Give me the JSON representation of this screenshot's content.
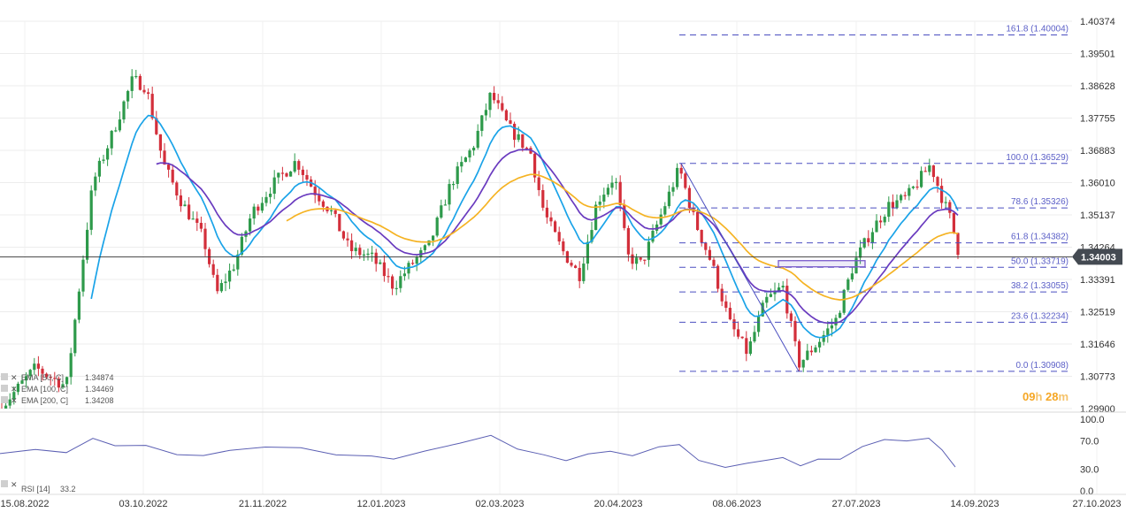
{
  "chart_data": {
    "type": "candlestick",
    "y_axis": {
      "range": [
        1.299,
        1.40374
      ],
      "ticks": [
        "1.40374",
        "1.39501",
        "1.38628",
        "1.37755",
        "1.36883",
        "1.36010",
        "1.35137",
        "1.34264",
        "1.33391",
        "1.32519",
        "1.31646",
        "1.30773",
        "1.29900"
      ]
    },
    "x_axis": {
      "ticks": [
        "15.08.2022",
        "03.10.2022",
        "21.11.2022",
        "12.01.2023",
        "02.03.2023",
        "20.04.2023",
        "08.06.2023",
        "27.07.2023",
        "14.09.2023",
        "27.10.2023"
      ]
    },
    "current_price": "1.34003",
    "current_price_value": 1.34003,
    "timer": {
      "hours": "09",
      "h": "h",
      "minutes": "28",
      "m": "m"
    },
    "fibonacci": {
      "levels": [
        {
          "label": "161.8 (1.40004)",
          "value": 1.40004
        },
        {
          "label": "100.0 (1.36529)",
          "value": 1.36529
        },
        {
          "label": "78.6 (1.35326)",
          "value": 1.35326
        },
        {
          "label": "61.8 (1.34382)",
          "value": 1.34382
        },
        {
          "label": "50.0 (1.33719)",
          "value": 1.33719
        },
        {
          "label": "38.2 (1.33055)",
          "value": 1.33055
        },
        {
          "label": "23.6 (1.32234)",
          "value": 1.32234
        },
        {
          "label": "0.0 (1.30908)",
          "value": 1.30908
        }
      ]
    },
    "indicators": [
      {
        "name": "EMA [50, C]",
        "value": "1.34874",
        "color": "#1aa3e8"
      },
      {
        "name": "EMA [100, C]",
        "value": "1.34469",
        "color": "#6a3bbf"
      },
      {
        "name": "EMA [200, C]",
        "value": "1.34208",
        "color": "#f5b323"
      }
    ],
    "rsi": {
      "name": "RSI [14]",
      "value": "33.2",
      "ticks": [
        "100.0",
        "70.0",
        "30.0",
        "0.0"
      ],
      "range": [
        0,
        100
      ],
      "color": "#5b5fb3"
    },
    "colors": {
      "bull": "#2e9a4b",
      "bear": "#d32f3b",
      "fib": "#4b4fc0"
    }
  }
}
